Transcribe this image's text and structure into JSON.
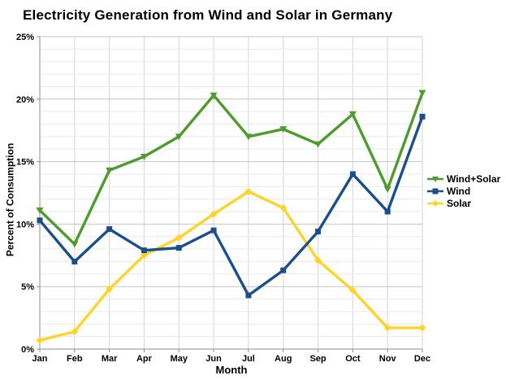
{
  "chart_data": {
    "type": "line",
    "title": "Electricity Generation from Wind and Solar in Germany",
    "xlabel": "Month",
    "ylabel": "Percent of Consumption",
    "categories": [
      "Jan",
      "Feb",
      "Mar",
      "Apr",
      "May",
      "Jun",
      "Jul",
      "Aug",
      "Sep",
      "Oct",
      "Nov",
      "Dec"
    ],
    "ylim": [
      0,
      25
    ],
    "y_major_step": 5,
    "y_minor_step": 1,
    "y_tick_labels": [
      "0%",
      "5%",
      "10%",
      "15%",
      "20%",
      "25%"
    ],
    "grid": true,
    "legend_position": "right",
    "series": [
      {
        "name": "Wind+Solar",
        "color": "#4e9b2e",
        "marker": "triangle-down",
        "values": [
          11.1,
          8.4,
          14.3,
          15.4,
          17.0,
          20.3,
          17.0,
          17.6,
          16.4,
          18.8,
          12.8,
          20.5
        ]
      },
      {
        "name": "Wind",
        "color": "#1b4f8a",
        "marker": "square",
        "values": [
          10.3,
          7.0,
          9.6,
          7.9,
          8.1,
          9.5,
          4.3,
          6.3,
          9.4,
          14.0,
          11.0,
          18.6
        ]
      },
      {
        "name": "Solar",
        "color": "#ffd32a",
        "marker": "diamond",
        "values": [
          0.7,
          1.4,
          4.8,
          7.5,
          8.9,
          10.8,
          12.6,
          11.3,
          7.1,
          4.7,
          1.7,
          1.7
        ]
      }
    ]
  }
}
